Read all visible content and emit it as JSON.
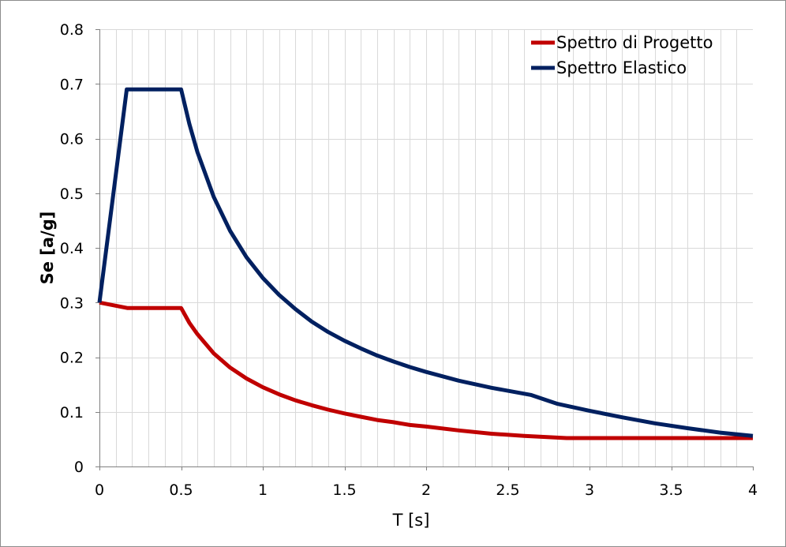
{
  "chart_data": {
    "type": "line",
    "title": "",
    "xlabel": "T [s]",
    "ylabel": "Se [a/g]",
    "xlim": [
      0,
      4
    ],
    "ylim": [
      0,
      0.8
    ],
    "x_ticks": [
      "0",
      "0.5",
      "1",
      "1.5",
      "2",
      "2.5",
      "3",
      "3.5",
      "4"
    ],
    "y_ticks": [
      "0",
      "0.1",
      "0.2",
      "0.3",
      "0.4",
      "0.5",
      "0.6",
      "0.7",
      "0.8"
    ],
    "x_tick_values": [
      0,
      0.5,
      1,
      1.5,
      2,
      2.5,
      3,
      3.5,
      4
    ],
    "y_tick_values": [
      0,
      0.1,
      0.2,
      0.3,
      0.4,
      0.5,
      0.6,
      0.7,
      0.8
    ],
    "x_minor_step": 0.1,
    "grid": true,
    "legend_position": "top-right",
    "series": [
      {
        "name": "Spettro di Progetto",
        "color": "#c00000",
        "points": [
          [
            0,
            0.3
          ],
          [
            0.17,
            0.29
          ],
          [
            0.25,
            0.29
          ],
          [
            0.4,
            0.29
          ],
          [
            0.5,
            0.29
          ],
          [
            0.55,
            0.263
          ],
          [
            0.6,
            0.242
          ],
          [
            0.7,
            0.207
          ],
          [
            0.8,
            0.181
          ],
          [
            0.9,
            0.161
          ],
          [
            1.0,
            0.145
          ],
          [
            1.1,
            0.132
          ],
          [
            1.2,
            0.121
          ],
          [
            1.3,
            0.112
          ],
          [
            1.4,
            0.104
          ],
          [
            1.5,
            0.097
          ],
          [
            1.6,
            0.091
          ],
          [
            1.7,
            0.085
          ],
          [
            1.8,
            0.081
          ],
          [
            1.9,
            0.076
          ],
          [
            2.0,
            0.073
          ],
          [
            2.2,
            0.066
          ],
          [
            2.4,
            0.06
          ],
          [
            2.6,
            0.056
          ],
          [
            2.86,
            0.052
          ],
          [
            3.0,
            0.052
          ],
          [
            3.5,
            0.052
          ],
          [
            4.0,
            0.052
          ]
        ]
      },
      {
        "name": "Spettro Elastico",
        "color": "#002060",
        "points": [
          [
            0,
            0.3
          ],
          [
            0.167,
            0.69
          ],
          [
            0.25,
            0.69
          ],
          [
            0.4,
            0.69
          ],
          [
            0.5,
            0.69
          ],
          [
            0.55,
            0.627
          ],
          [
            0.6,
            0.575
          ],
          [
            0.7,
            0.493
          ],
          [
            0.8,
            0.431
          ],
          [
            0.9,
            0.383
          ],
          [
            1.0,
            0.345
          ],
          [
            1.1,
            0.314
          ],
          [
            1.2,
            0.288
          ],
          [
            1.3,
            0.265
          ],
          [
            1.4,
            0.246
          ],
          [
            1.5,
            0.23
          ],
          [
            1.6,
            0.216
          ],
          [
            1.7,
            0.203
          ],
          [
            1.8,
            0.192
          ],
          [
            1.9,
            0.182
          ],
          [
            2.0,
            0.173
          ],
          [
            2.2,
            0.157
          ],
          [
            2.4,
            0.144
          ],
          [
            2.64,
            0.131
          ],
          [
            2.8,
            0.115
          ],
          [
            3.0,
            0.102
          ],
          [
            3.2,
            0.09
          ],
          [
            3.4,
            0.079
          ],
          [
            3.6,
            0.07
          ],
          [
            3.8,
            0.062
          ],
          [
            4.0,
            0.056
          ]
        ]
      }
    ]
  }
}
